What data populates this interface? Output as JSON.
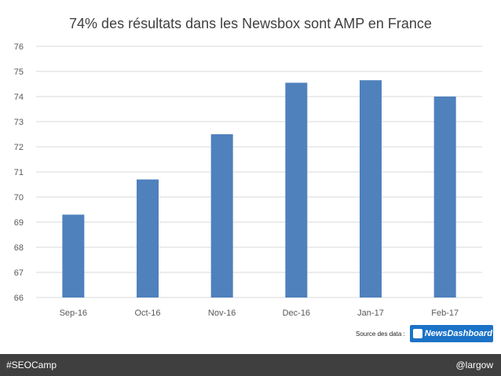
{
  "chart_data": {
    "type": "bar",
    "title": "74% des résultats dans les Newsbox sont AMP en France",
    "categories": [
      "Sep-16",
      "Oct-16",
      "Nov-16",
      "Dec-16",
      "Jan-17",
      "Feb-17"
    ],
    "values": [
      69.3,
      70.7,
      72.5,
      74.55,
      74.65,
      74.0
    ],
    "ylim": [
      66,
      76
    ],
    "yticks": [
      66,
      67,
      68,
      69,
      70,
      71,
      72,
      73,
      74,
      75,
      76
    ],
    "xlabel": "",
    "ylabel": "",
    "grid": true,
    "bar_color": "#4f81bd"
  },
  "source": {
    "label": "Source des data :",
    "logo_text": "NewsDashboard",
    "logo_color": "#1b73c8"
  },
  "footer": {
    "left": "#SEOCamp",
    "right": "@largow",
    "background": "#3f3f3f"
  }
}
